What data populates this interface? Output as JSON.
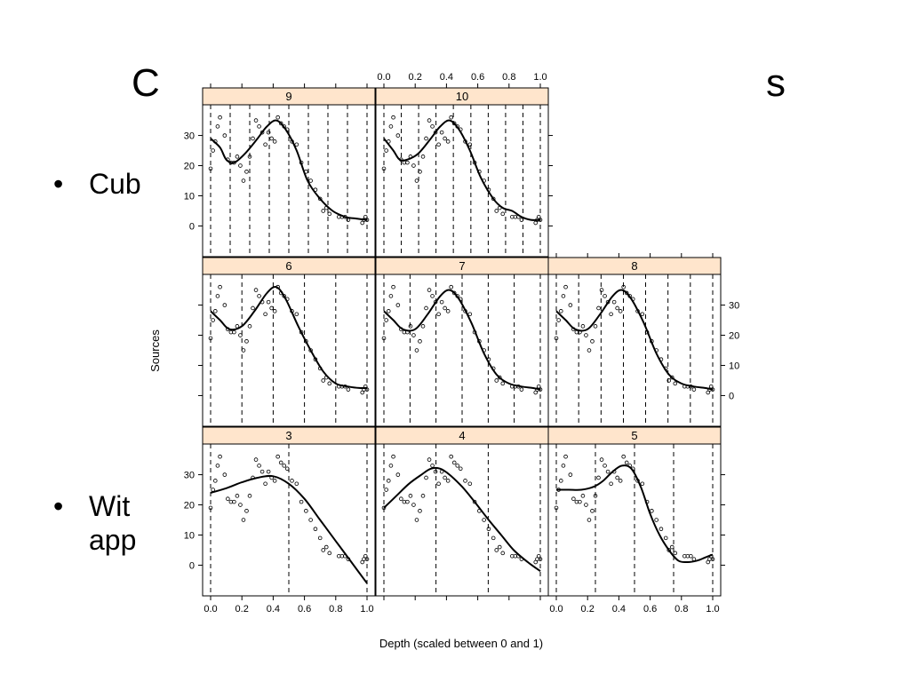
{
  "slide": {
    "title_fragment_left": "C",
    "title_fragment_right": "s",
    "bullets": [
      {
        "text": "Cub"
      },
      {
        "line1": "Wit",
        "line2": "app"
      }
    ]
  },
  "colors": {
    "strip_fill": "#ffe5cc",
    "line": "#000000",
    "background": "#ffffff"
  },
  "chart_data": {
    "type": "scatter",
    "layout": "lattice 3x3 conditioned on number of knots",
    "xlabel": "Depth (scaled between 0 and 1)",
    "ylabel": "Sources",
    "xlim": [
      0,
      1
    ],
    "ylim": [
      -9,
      39
    ],
    "x_ticks": [
      "0.0",
      "0.2",
      "0.4",
      "0.6",
      "0.8",
      "1.0"
    ],
    "y_ticks": [
      "0",
      "10",
      "20",
      "30"
    ],
    "points": {
      "x": [
        0.0,
        0.015,
        0.03,
        0.045,
        0.06,
        0.09,
        0.11,
        0.13,
        0.15,
        0.17,
        0.19,
        0.21,
        0.23,
        0.25,
        0.27,
        0.29,
        0.31,
        0.33,
        0.35,
        0.37,
        0.39,
        0.41,
        0.43,
        0.45,
        0.47,
        0.49,
        0.52,
        0.55,
        0.58,
        0.61,
        0.64,
        0.67,
        0.7,
        0.72,
        0.74,
        0.76,
        0.82,
        0.84,
        0.86,
        0.88,
        0.97,
        0.98,
        0.99,
        1.0
      ],
      "y": [
        19,
        25,
        28,
        33,
        36,
        30,
        22,
        21,
        21,
        23,
        20,
        15,
        18,
        23,
        29,
        35,
        33,
        31,
        27,
        31,
        29,
        28,
        36,
        34,
        33,
        32,
        28,
        27,
        21,
        18,
        15,
        12,
        9,
        5,
        6,
        4,
        3,
        3,
        3,
        2,
        1,
        2,
        3,
        2
      ]
    },
    "panels": [
      {
        "label": "9",
        "knots": [
          0.0,
          0.125,
          0.25,
          0.375,
          0.5,
          0.625,
          0.75,
          0.875,
          1.0
        ],
        "fit": {
          "x": [
            0.0,
            0.06,
            0.1,
            0.15,
            0.22,
            0.3,
            0.36,
            0.42,
            0.48,
            0.55,
            0.62,
            0.7,
            0.78,
            0.86,
            0.92,
            1.0
          ],
          "y": [
            29,
            26,
            22,
            21,
            24,
            29,
            33,
            35,
            32,
            25,
            15,
            9,
            5,
            3,
            2.5,
            2
          ]
        }
      },
      {
        "label": "10",
        "knots": [
          0.0,
          0.111,
          0.222,
          0.333,
          0.444,
          0.556,
          0.667,
          0.778,
          0.889,
          1.0
        ],
        "fit": {
          "x": [
            0.0,
            0.06,
            0.1,
            0.15,
            0.22,
            0.3,
            0.36,
            0.42,
            0.48,
            0.55,
            0.62,
            0.7,
            0.76,
            0.82,
            0.88,
            0.94,
            1.0
          ],
          "y": [
            29,
            25,
            22,
            22,
            24,
            29,
            33,
            35,
            32,
            25,
            16,
            9,
            6,
            5,
            3,
            2,
            2
          ]
        }
      },
      {
        "label": "6",
        "knots": [
          0.0,
          0.2,
          0.4,
          0.6,
          0.8,
          1.0
        ],
        "fit": {
          "x": [
            0.0,
            0.06,
            0.12,
            0.2,
            0.28,
            0.36,
            0.42,
            0.48,
            0.56,
            0.64,
            0.72,
            0.8,
            0.88,
            0.95,
            1.0
          ],
          "y": [
            28,
            25,
            22,
            23,
            28,
            34,
            36,
            32,
            23,
            15,
            8,
            4,
            3,
            2.5,
            2.5
          ]
        }
      },
      {
        "label": "7",
        "knots": [
          0.0,
          0.167,
          0.333,
          0.5,
          0.667,
          0.833,
          1.0
        ],
        "fit": {
          "x": [
            0.0,
            0.06,
            0.12,
            0.2,
            0.28,
            0.36,
            0.42,
            0.48,
            0.56,
            0.64,
            0.72,
            0.8,
            0.88,
            0.95,
            1.0
          ],
          "y": [
            28,
            25,
            22,
            22,
            27,
            33,
            35,
            32,
            24,
            14,
            7,
            4,
            3,
            2.5,
            2
          ]
        }
      },
      {
        "label": "8",
        "knots": [
          0.0,
          0.143,
          0.286,
          0.429,
          0.571,
          0.714,
          0.857,
          1.0
        ],
        "fit": {
          "x": [
            0.0,
            0.06,
            0.12,
            0.2,
            0.28,
            0.36,
            0.42,
            0.48,
            0.56,
            0.64,
            0.72,
            0.8,
            0.88,
            0.95,
            1.0
          ],
          "y": [
            28,
            25,
            22,
            22,
            27,
            33,
            35,
            32,
            24,
            14,
            7,
            4,
            3,
            2.5,
            2
          ]
        }
      },
      {
        "label": "3",
        "knots": [
          0.0,
          0.5,
          1.0
        ],
        "fit": {
          "x": [
            0.0,
            0.1,
            0.2,
            0.3,
            0.4,
            0.5,
            0.6,
            0.7,
            0.8,
            0.9,
            1.0
          ],
          "y": [
            24,
            25.5,
            27.5,
            29,
            29.5,
            27,
            22,
            15,
            8,
            1,
            -6
          ]
        }
      },
      {
        "label": "4",
        "knots": [
          0.0,
          0.333,
          0.667,
          1.0
        ],
        "fit": {
          "x": [
            0.0,
            0.08,
            0.16,
            0.24,
            0.3,
            0.36,
            0.42,
            0.5,
            0.58,
            0.67,
            0.75,
            0.83,
            0.92,
            1.0
          ],
          "y": [
            19,
            23,
            27,
            30,
            32,
            32,
            30,
            26,
            21,
            15,
            10,
            5,
            1,
            -2
          ]
        }
      },
      {
        "label": "5",
        "knots": [
          0.0,
          0.25,
          0.5,
          0.75,
          1.0
        ],
        "fit": {
          "x": [
            0.0,
            0.08,
            0.16,
            0.24,
            0.3,
            0.36,
            0.42,
            0.48,
            0.54,
            0.6,
            0.66,
            0.72,
            0.78,
            0.84,
            0.9,
            0.95,
            1.0
          ],
          "y": [
            25,
            25,
            25,
            26,
            28,
            31,
            33,
            32,
            26,
            17,
            10,
            5,
            1.5,
            1,
            1.5,
            2.5,
            3.5
          ]
        }
      }
    ]
  }
}
